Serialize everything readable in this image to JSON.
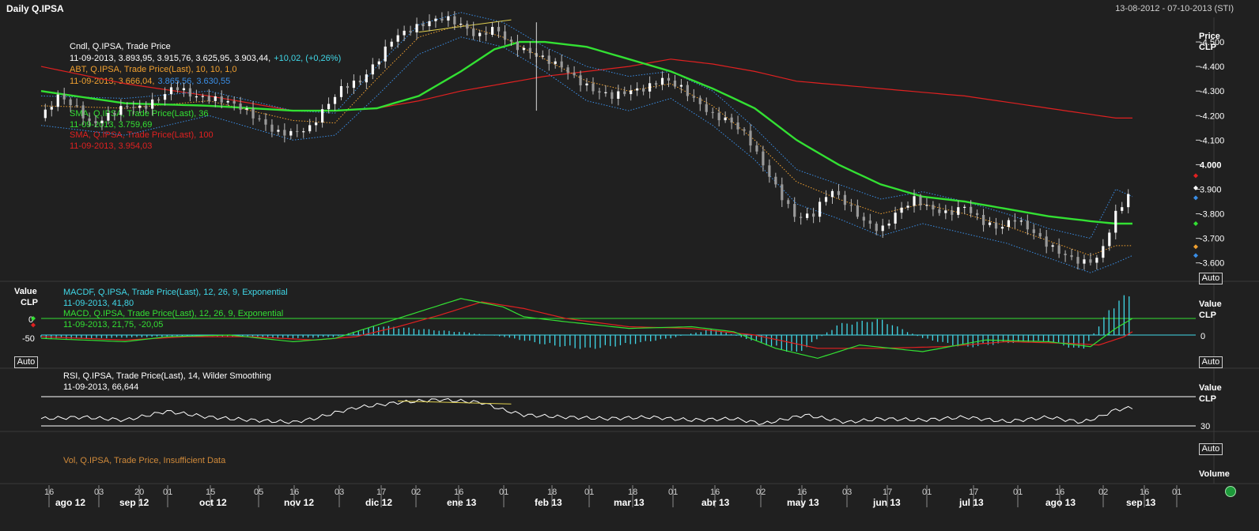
{
  "header": {
    "title": "Daily Q.IPSA",
    "date_range": "13-08-2012 - 07-10-2013 (STI)"
  },
  "panels": {
    "price": {
      "axis_title": "Price",
      "axis_unit": "CLP",
      "auto_label": "Auto",
      "ticks": [
        "4.500",
        "4.400",
        "4.300",
        "4.200",
        "4.100",
        "4.000",
        "3.900",
        "3.800",
        "3.700",
        "3.600"
      ],
      "legend": {
        "cndl_name": "Cndl, Q.IPSA, Trade Price",
        "cndl_values": "11-09-2013, 3.893,95, 3.915,76, 3.625,95, 3.903,44,",
        "cndl_change": "+10,02, (+0,26%)",
        "abt_name": "ABT, Q.IPSA, Trade Price(Last),  10, 10, 1,0",
        "abt_values_1": "11-09-2013, 3.666,04,",
        "abt_values_2": "3.865,56, 3.630,55",
        "sma1_name": "SMA, Q.IPSA, Trade Price(Last),  36",
        "sma1_values": "11-09-2013, 3.759,69",
        "sma2_name": "SMA, Q.IPSA, Trade Price(Last),  100",
        "sma2_values": "11-09-2013, 3.954,03"
      }
    },
    "macd": {
      "axis_title": "Value",
      "axis_unit": "CLP",
      "auto_label": "Auto",
      "left_ticks": [
        "0",
        "-50"
      ],
      "right_tick": "0",
      "legend": {
        "macdf_name": "MACDF, Q.IPSA, Trade Price(Last),  12, 26, 9, Exponential",
        "macdf_values": "11-09-2013, 41,80",
        "macd_name": "MACD, Q.IPSA, Trade Price(Last),  12, 26, 9, Exponential",
        "macd_values": "11-09-2013, 21,75, -20,05"
      }
    },
    "rsi": {
      "axis_title": "Value",
      "axis_unit": "CLP",
      "auto_label": "Auto",
      "right_tick": "30",
      "legend": {
        "rsi_name": "RSI, Q.IPSA, Trade Price(Last),  14, Wilder Smoothing",
        "rsi_values": "11-09-2013, 66,644"
      }
    },
    "volume": {
      "axis_title": "Volume",
      "legend": "Vol, Q.IPSA, Trade Price,  Insufficient Data"
    }
  },
  "chart_data": {
    "type": "candlestick",
    "symbol": "Q.IPSA",
    "x_axis": {
      "day_ticks": [
        "16",
        "03",
        "20",
        "01",
        "15",
        "05",
        "16",
        "03",
        "17",
        "02",
        "16",
        "01",
        "18",
        "01",
        "18",
        "01",
        "16",
        "02",
        "16",
        "03",
        "17",
        "01",
        "17",
        "01",
        "16",
        "02",
        "16",
        "01"
      ],
      "month_labels": [
        "ago 12",
        "sep 12",
        "oct 12",
        "nov 12",
        "dic 12",
        "ene 13",
        "feb 13",
        "mar 13",
        "abr 13",
        "may 13",
        "jun 13",
        "jul 13",
        "ago 13",
        "sep 13"
      ]
    },
    "price": {
      "ylim": [
        3.525,
        4.6
      ],
      "close_path": [
        [
          0,
          4.19
        ],
        [
          4,
          4.28
        ],
        [
          8,
          4.24
        ],
        [
          12,
          4.16
        ],
        [
          16,
          4.2
        ],
        [
          20,
          4.24
        ],
        [
          24,
          4.23
        ],
        [
          28,
          4.27
        ],
        [
          32,
          4.32
        ],
        [
          36,
          4.28
        ],
        [
          40,
          4.27
        ],
        [
          44,
          4.26
        ],
        [
          48,
          4.23
        ],
        [
          52,
          4.18
        ],
        [
          56,
          4.13
        ],
        [
          60,
          4.13
        ],
        [
          64,
          4.15
        ],
        [
          68,
          4.24
        ],
        [
          72,
          4.32
        ],
        [
          76,
          4.34
        ],
        [
          80,
          4.42
        ],
        [
          84,
          4.52
        ],
        [
          88,
          4.55
        ],
        [
          92,
          4.58
        ],
        [
          96,
          4.6
        ],
        [
          100,
          4.57
        ],
        [
          104,
          4.52
        ],
        [
          108,
          4.56
        ],
        [
          112,
          4.49
        ],
        [
          116,
          4.46
        ],
        [
          120,
          4.43
        ],
        [
          124,
          4.4
        ],
        [
          128,
          4.34
        ],
        [
          132,
          4.3
        ],
        [
          136,
          4.28
        ],
        [
          140,
          4.3
        ],
        [
          144,
          4.31
        ],
        [
          148,
          4.35
        ],
        [
          152,
          4.32
        ],
        [
          156,
          4.26
        ],
        [
          160,
          4.2
        ],
        [
          164,
          4.18
        ],
        [
          168,
          4.12
        ],
        [
          172,
          4.0
        ],
        [
          176,
          3.88
        ],
        [
          180,
          3.78
        ],
        [
          184,
          3.8
        ],
        [
          188,
          3.9
        ],
        [
          192,
          3.84
        ],
        [
          196,
          3.77
        ],
        [
          200,
          3.73
        ],
        [
          204,
          3.81
        ],
        [
          208,
          3.86
        ],
        [
          212,
          3.82
        ],
        [
          216,
          3.8
        ],
        [
          220,
          3.83
        ],
        [
          224,
          3.77
        ],
        [
          228,
          3.74
        ],
        [
          232,
          3.78
        ],
        [
          236,
          3.73
        ],
        [
          240,
          3.67
        ],
        [
          244,
          3.63
        ],
        [
          248,
          3.6
        ],
        [
          252,
          3.62
        ],
        [
          256,
          3.8
        ],
        [
          260,
          3.9
        ]
      ],
      "sma36_path": [
        [
          0,
          4.3
        ],
        [
          20,
          4.25
        ],
        [
          40,
          4.24
        ],
        [
          60,
          4.22
        ],
        [
          70,
          4.22
        ],
        [
          80,
          4.23
        ],
        [
          90,
          4.28
        ],
        [
          100,
          4.38
        ],
        [
          108,
          4.47
        ],
        [
          114,
          4.5
        ],
        [
          120,
          4.5
        ],
        [
          130,
          4.48
        ],
        [
          140,
          4.43
        ],
        [
          150,
          4.38
        ],
        [
          160,
          4.31
        ],
        [
          170,
          4.23
        ],
        [
          180,
          4.1
        ],
        [
          190,
          4.0
        ],
        [
          200,
          3.92
        ],
        [
          210,
          3.87
        ],
        [
          220,
          3.85
        ],
        [
          230,
          3.82
        ],
        [
          240,
          3.79
        ],
        [
          250,
          3.77
        ],
        [
          256,
          3.76
        ],
        [
          260,
          3.76
        ]
      ],
      "sma100_path": [
        [
          0,
          4.4
        ],
        [
          20,
          4.33
        ],
        [
          40,
          4.28
        ],
        [
          60,
          4.22
        ],
        [
          70,
          4.22
        ],
        [
          80,
          4.23
        ],
        [
          90,
          4.26
        ],
        [
          100,
          4.3
        ],
        [
          120,
          4.36
        ],
        [
          140,
          4.4
        ],
        [
          150,
          4.43
        ],
        [
          160,
          4.41
        ],
        [
          170,
          4.38
        ],
        [
          180,
          4.34
        ],
        [
          200,
          4.31
        ],
        [
          220,
          4.28
        ],
        [
          240,
          4.23
        ],
        [
          256,
          4.19
        ],
        [
          260,
          4.19
        ]
      ],
      "band_mid_path": [
        [
          0,
          4.24
        ],
        [
          20,
          4.23
        ],
        [
          40,
          4.26
        ],
        [
          60,
          4.18
        ],
        [
          70,
          4.17
        ],
        [
          80,
          4.35
        ],
        [
          90,
          4.52
        ],
        [
          100,
          4.57
        ],
        [
          110,
          4.52
        ],
        [
          120,
          4.43
        ],
        [
          130,
          4.34
        ],
        [
          140,
          4.3
        ],
        [
          150,
          4.33
        ],
        [
          160,
          4.24
        ],
        [
          170,
          4.1
        ],
        [
          180,
          3.93
        ],
        [
          190,
          3.86
        ],
        [
          200,
          3.8
        ],
        [
          210,
          3.84
        ],
        [
          220,
          3.8
        ],
        [
          230,
          3.75
        ],
        [
          240,
          3.69
        ],
        [
          250,
          3.63
        ],
        [
          256,
          3.67
        ],
        [
          260,
          3.67
        ]
      ],
      "band_upper_path": [
        [
          0,
          4.28
        ],
        [
          20,
          4.27
        ],
        [
          40,
          4.3
        ],
        [
          60,
          4.22
        ],
        [
          70,
          4.21
        ],
        [
          80,
          4.4
        ],
        [
          90,
          4.57
        ],
        [
          100,
          4.62
        ],
        [
          110,
          4.58
        ],
        [
          120,
          4.48
        ],
        [
          130,
          4.4
        ],
        [
          140,
          4.36
        ],
        [
          150,
          4.38
        ],
        [
          160,
          4.3
        ],
        [
          170,
          4.15
        ],
        [
          180,
          3.98
        ],
        [
          190,
          3.92
        ],
        [
          200,
          3.86
        ],
        [
          210,
          3.89
        ],
        [
          220,
          3.85
        ],
        [
          230,
          3.8
        ],
        [
          240,
          3.74
        ],
        [
          250,
          3.7
        ],
        [
          256,
          3.9
        ],
        [
          260,
          3.87
        ]
      ],
      "band_lower_path": [
        [
          0,
          4.16
        ],
        [
          20,
          4.12
        ],
        [
          40,
          4.2
        ],
        [
          60,
          4.1
        ],
        [
          70,
          4.12
        ],
        [
          80,
          4.28
        ],
        [
          90,
          4.45
        ],
        [
          100,
          4.52
        ],
        [
          110,
          4.48
        ],
        [
          120,
          4.38
        ],
        [
          130,
          4.26
        ],
        [
          140,
          4.22
        ],
        [
          150,
          4.27
        ],
        [
          160,
          4.16
        ],
        [
          170,
          4.02
        ],
        [
          180,
          3.84
        ],
        [
          190,
          3.78
        ],
        [
          200,
          3.71
        ],
        [
          210,
          3.76
        ],
        [
          220,
          3.72
        ],
        [
          230,
          3.68
        ],
        [
          240,
          3.62
        ],
        [
          250,
          3.56
        ],
        [
          256,
          3.6
        ],
        [
          260,
          3.63
        ]
      ],
      "trendline": [
        [
          90,
          4.54
        ],
        [
          112,
          4.59
        ]
      ],
      "spike": {
        "index": 118,
        "low": 4.22,
        "high": 4.58
      }
    },
    "macd": {
      "ylim": [
        -100,
        200
      ],
      "hist_path": [
        [
          0,
          -10
        ],
        [
          10,
          -12
        ],
        [
          20,
          -8
        ],
        [
          30,
          -5
        ],
        [
          40,
          -3
        ],
        [
          50,
          -6
        ],
        [
          60,
          -10
        ],
        [
          70,
          -6
        ],
        [
          80,
          30
        ],
        [
          90,
          20
        ],
        [
          100,
          10
        ],
        [
          110,
          -5
        ],
        [
          120,
          -30
        ],
        [
          130,
          -45
        ],
        [
          140,
          -30
        ],
        [
          150,
          -10
        ],
        [
          160,
          20
        ],
        [
          170,
          -20
        ],
        [
          180,
          -60
        ],
        [
          190,
          35
        ],
        [
          200,
          50
        ],
        [
          210,
          -10
        ],
        [
          220,
          -40
        ],
        [
          230,
          -25
        ],
        [
          240,
          -20
        ],
        [
          248,
          -50
        ],
        [
          252,
          30
        ],
        [
          256,
          110
        ],
        [
          260,
          130
        ]
      ],
      "macd_path": [
        [
          0,
          -10
        ],
        [
          20,
          -20
        ],
        [
          30,
          -5
        ],
        [
          45,
          0
        ],
        [
          60,
          -20
        ],
        [
          70,
          -10
        ],
        [
          80,
          30
        ],
        [
          90,
          70
        ],
        [
          100,
          110
        ],
        [
          110,
          85
        ],
        [
          115,
          55
        ],
        [
          125,
          40
        ],
        [
          140,
          20
        ],
        [
          155,
          25
        ],
        [
          165,
          10
        ],
        [
          175,
          -40
        ],
        [
          185,
          -70
        ],
        [
          195,
          -30
        ],
        [
          210,
          -50
        ],
        [
          225,
          -15
        ],
        [
          240,
          -20
        ],
        [
          250,
          -35
        ],
        [
          256,
          20
        ],
        [
          260,
          50
        ]
      ],
      "signal_path": [
        [
          0,
          -5
        ],
        [
          20,
          -15
        ],
        [
          35,
          -5
        ],
        [
          50,
          -5
        ],
        [
          65,
          -15
        ],
        [
          75,
          -5
        ],
        [
          85,
          25
        ],
        [
          95,
          60
        ],
        [
          105,
          100
        ],
        [
          115,
          80
        ],
        [
          125,
          50
        ],
        [
          140,
          25
        ],
        [
          155,
          20
        ],
        [
          170,
          0
        ],
        [
          185,
          -40
        ],
        [
          200,
          -40
        ],
        [
          215,
          -35
        ],
        [
          230,
          -20
        ],
        [
          245,
          -25
        ],
        [
          252,
          -30
        ],
        [
          258,
          -5
        ],
        [
          260,
          10
        ]
      ],
      "zero": 0,
      "level_line": 50
    },
    "rsi": {
      "ylim": [
        20,
        80
      ],
      "path": [
        [
          0,
          40
        ],
        [
          10,
          42
        ],
        [
          20,
          38
        ],
        [
          30,
          50
        ],
        [
          40,
          42
        ],
        [
          50,
          38
        ],
        [
          60,
          35
        ],
        [
          65,
          40
        ],
        [
          70,
          48
        ],
        [
          75,
          55
        ],
        [
          85,
          62
        ],
        [
          95,
          66
        ],
        [
          105,
          62
        ],
        [
          110,
          52
        ],
        [
          115,
          45
        ],
        [
          125,
          42
        ],
        [
          135,
          40
        ],
        [
          145,
          42
        ],
        [
          155,
          38
        ],
        [
          165,
          40
        ],
        [
          172,
          33
        ],
        [
          182,
          45
        ],
        [
          192,
          35
        ],
        [
          200,
          40
        ],
        [
          210,
          38
        ],
        [
          220,
          42
        ],
        [
          230,
          36
        ],
        [
          240,
          42
        ],
        [
          248,
          35
        ],
        [
          252,
          42
        ],
        [
          256,
          52
        ],
        [
          260,
          55
        ]
      ],
      "level_high": 70,
      "level_low": 30,
      "trendline": [
        [
          85,
          64
        ],
        [
          112,
          60
        ]
      ]
    },
    "marker_colors": {
      "candle": "#ffffff",
      "sma36": "#33e033",
      "sma100": "#e02020",
      "abt_mid": "#f0a030",
      "abt_band": "#3a8ee6",
      "macdf": "#40d8e8",
      "macd": "#33e033",
      "signal": "#e02020",
      "rsi": "#ffffff",
      "trend": "#e0d050"
    }
  }
}
